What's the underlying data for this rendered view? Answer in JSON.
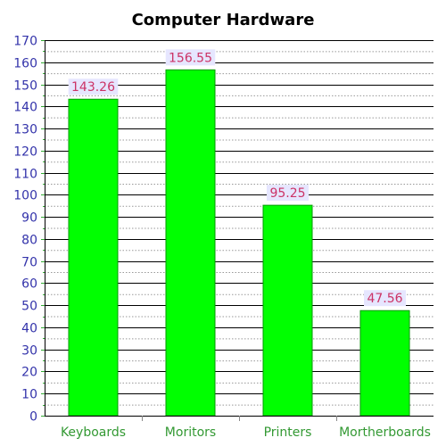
{
  "chart_data": {
    "type": "bar",
    "title": "Computer Hardware",
    "xlabel": "",
    "ylabel": "",
    "categories": [
      "Keyboards",
      "Moritors",
      "Printers",
      "Mortherboards"
    ],
    "values": [
      143.26,
      156.55,
      95.25,
      47.56
    ],
    "value_labels": [
      "143.26",
      "156.55",
      "95.25",
      "47.56"
    ],
    "ylim": [
      0,
      170
    ],
    "y_ticks": [
      0,
      10,
      20,
      30,
      40,
      50,
      60,
      70,
      80,
      90,
      100,
      110,
      120,
      130,
      140,
      150,
      160,
      170
    ],
    "y_minor_ticks": [
      5,
      15,
      25,
      35,
      45,
      55,
      65,
      75,
      85,
      95,
      105,
      115,
      125,
      135,
      145,
      155,
      165
    ],
    "grid": true,
    "legend": "none",
    "colors": {
      "bar_fill": "#00ff00",
      "bar_stroke": "#009900",
      "title_text": "#000000",
      "y_tick_text": "#3333aa",
      "x_tick_text": "#339933",
      "value_label_text": "#cc3366",
      "value_label_bg": "#e6e6ff",
      "major_grid": "#000000",
      "minor_grid": "#999999",
      "axis_line": "#000000",
      "tick_mark": "#33aa33"
    }
  }
}
